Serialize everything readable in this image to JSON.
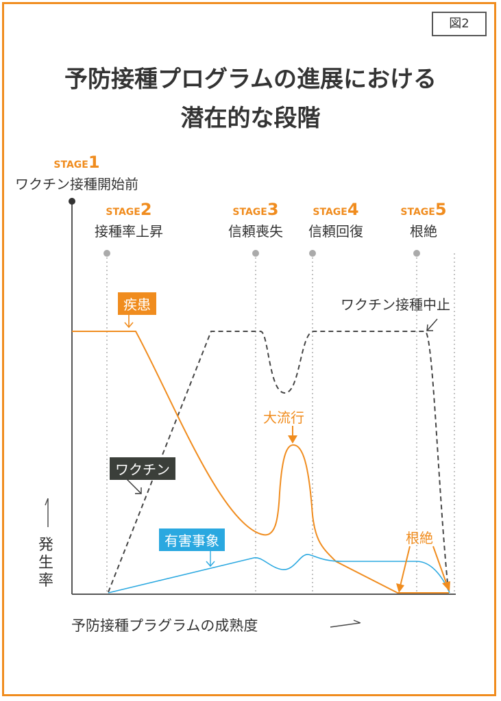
{
  "figure_label": "図2",
  "title_line1": "予防接種プログラムの進展における",
  "title_line2": "潜在的な段階",
  "stages": [
    {
      "tag": "STAGE",
      "num": "1",
      "name": "ワクチン接種開始前"
    },
    {
      "tag": "STAGE",
      "num": "2",
      "name": "接種率上昇"
    },
    {
      "tag": "STAGE",
      "num": "3",
      "name": "信頼喪失"
    },
    {
      "tag": "STAGE",
      "num": "4",
      "name": "信頼回復"
    },
    {
      "tag": "STAGE",
      "num": "5",
      "name": "根絶"
    }
  ],
  "labels": {
    "disease": "疾患",
    "vaccine": "ワクチン",
    "adverse": "有害事象",
    "outbreak": "大流行",
    "eradication": "根絶",
    "vaccine_stop": "ワクチン接種中止"
  },
  "y_axis": "発生率",
  "x_axis": "予防接種プラグラムの成熟度",
  "colors": {
    "accent": "#f08c1e",
    "adverse": "#2aa8e0",
    "vaccine_label_bg": "#3b3f3a",
    "text": "#333333"
  }
}
